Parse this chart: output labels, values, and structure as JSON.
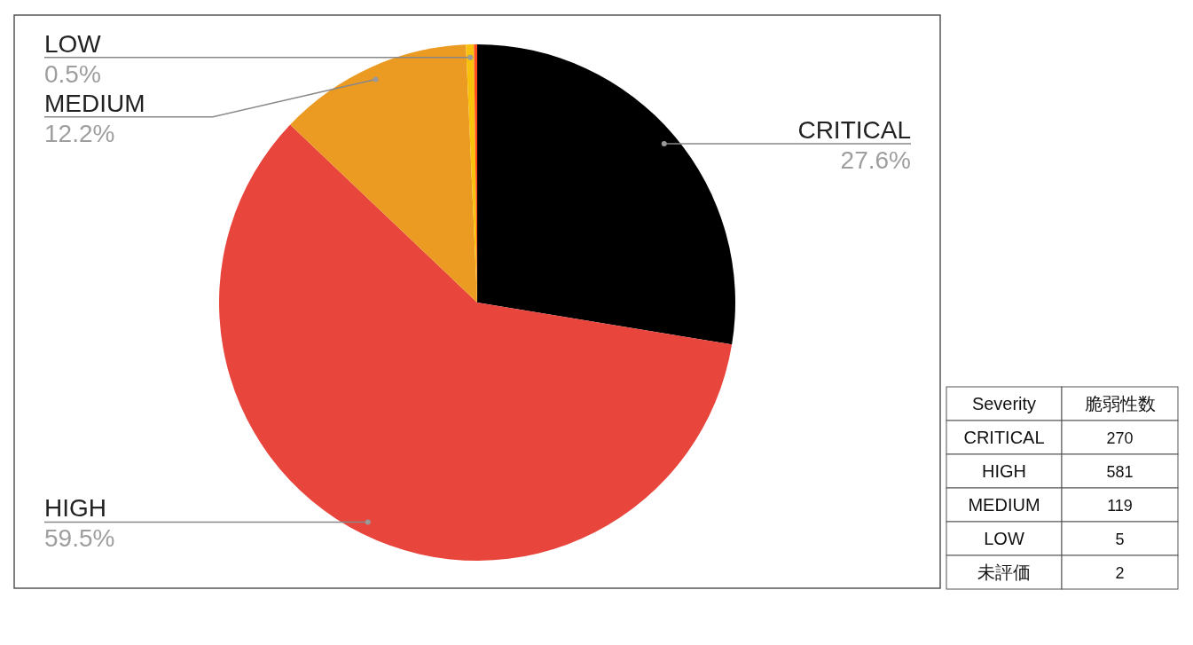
{
  "chart_data": [
    {
      "type": "pie",
      "categories": [
        "CRITICAL",
        "HIGH",
        "MEDIUM",
        "LOW",
        null
      ],
      "values": [
        27.6,
        59.5,
        12.2,
        0.5,
        0.2
      ],
      "colors": [
        "#000000",
        "#e8453c",
        "#eb9a22",
        "#f9c00c",
        "#ff4c1f"
      ],
      "value_labels": [
        "27.6%",
        "59.5%",
        "12.2%",
        "0.5%",
        null
      ]
    },
    {
      "type": "other",
      "categories": [
        "CRITICAL",
        "HIGH",
        "MEDIUM",
        "LOW",
        "未評価"
      ],
      "values": [
        270,
        581,
        119,
        5,
        2
      ],
      "data_labels": true,
      "annotations": [
        "Severity",
        "脆弱性数"
      ]
    }
  ]
}
